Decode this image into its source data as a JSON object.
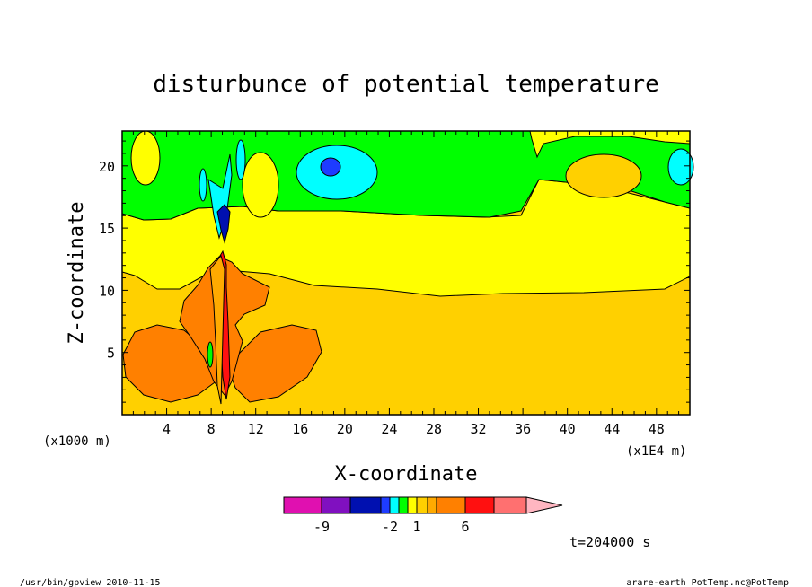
{
  "chart_data": {
    "type": "heatmap",
    "title": "disturbunce of potential temperature",
    "xlabel": "X-coordinate",
    "ylabel": "Z-coordinate",
    "x_unit_label": "(x1E4 m)",
    "y_unit_label": "(x1000 m)",
    "xlim": [
      0,
      51
    ],
    "ylim": [
      0,
      22.8
    ],
    "x_ticks": [
      4,
      8,
      12,
      16,
      20,
      24,
      28,
      32,
      36,
      40,
      44,
      48
    ],
    "y_ticks": [
      5,
      10,
      15,
      20
    ],
    "colorbar": {
      "tick_labels": [
        "-9",
        "-2",
        "1",
        "6"
      ],
      "tick_values": [
        -9,
        -2,
        1,
        6
      ],
      "colors": [
        "#e010b0",
        "#8010c0",
        "#0010b0",
        "#1e3cff",
        "#00ffff",
        "#00ff00",
        "#ffff00",
        "#ffd000",
        "#ffaa00",
        "#ff8000",
        "#ff1010",
        "#ff7070",
        "#ffb6c1"
      ]
    },
    "annotation": "t=204000 s"
  },
  "footer": {
    "left": "/usr/bin/gpview   2010-11-15",
    "right": "arare-earth_PotTemp.nc@PotTemp"
  }
}
